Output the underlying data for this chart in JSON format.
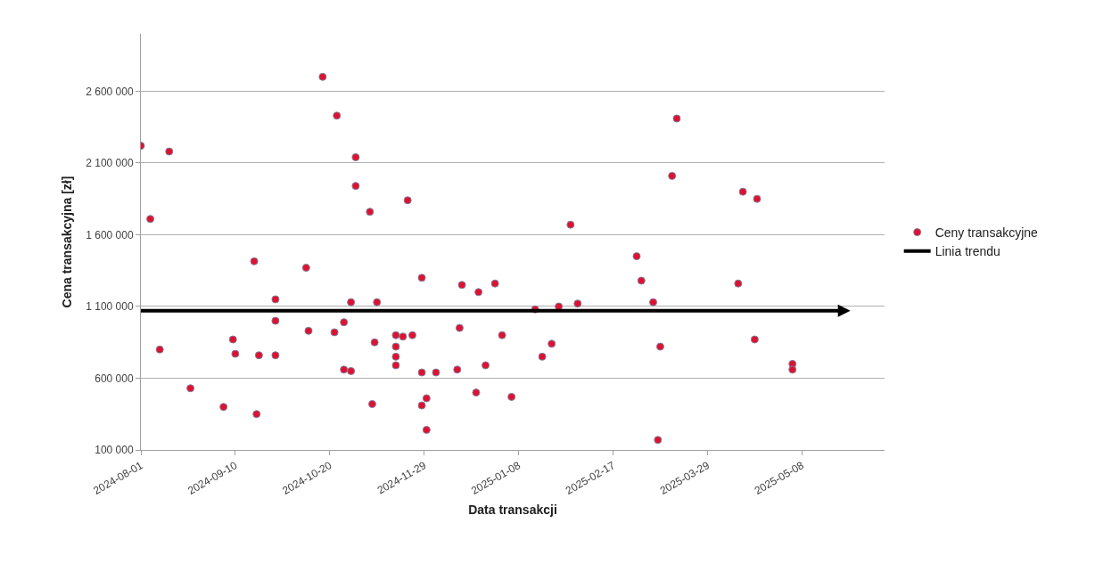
{
  "chart_data": {
    "type": "scatter",
    "xlabel": "Data transakcji",
    "ylabel": "Cena transakcyjna [zł]",
    "xlim": [
      "2024-08-01",
      "2025-06-12"
    ],
    "xticks": [
      "2024-08-01",
      "2024-09-10",
      "2024-10-20",
      "2024-11-29",
      "2025-01-08",
      "2025-02-17",
      "2025-03-29",
      "2025-05-08"
    ],
    "ylim": [
      100000,
      3000000
    ],
    "yticks": [
      {
        "value": 100000,
        "label": "100 000"
      },
      {
        "value": 600000,
        "label": "600 000"
      },
      {
        "value": 1100000,
        "label": "1 100 000"
      },
      {
        "value": 1600000,
        "label": "1 600 000"
      },
      {
        "value": 2100000,
        "label": "2 100 000"
      },
      {
        "value": 2600000,
        "label": "2 600 000"
      }
    ],
    "grid": "y",
    "legend": "right",
    "series": [
      {
        "name": "Ceny transakcyjne",
        "marker": "circle",
        "color": "#e0102e",
        "x": [
          "2024-08-01",
          "2024-08-05",
          "2024-08-09",
          "2024-08-13",
          "2024-08-22",
          "2024-09-05",
          "2024-09-09",
          "2024-09-10",
          "2024-09-18",
          "2024-09-19",
          "2024-09-20",
          "2024-09-27",
          "2024-09-27",
          "2024-09-27",
          "2024-10-10",
          "2024-10-11",
          "2024-10-17",
          "2024-10-22",
          "2024-10-23",
          "2024-10-26",
          "2024-10-26",
          "2024-10-29",
          "2024-10-29",
          "2024-10-31",
          "2024-10-31",
          "2024-11-06",
          "2024-11-07",
          "2024-11-08",
          "2024-11-09",
          "2024-11-17",
          "2024-11-17",
          "2024-11-17",
          "2024-11-17",
          "2024-11-20",
          "2024-11-22",
          "2024-11-24",
          "2024-11-28",
          "2024-11-28",
          "2024-11-28",
          "2024-11-30",
          "2024-11-30",
          "2024-12-04",
          "2024-12-13",
          "2024-12-14",
          "2024-12-15",
          "2024-12-21",
          "2024-12-22",
          "2024-12-25",
          "2024-12-29",
          "2025-01-01",
          "2025-01-05",
          "2025-01-15",
          "2025-01-18",
          "2025-01-22",
          "2025-01-25",
          "2025-01-30",
          "2025-02-02",
          "2025-02-27",
          "2025-03-01",
          "2025-03-06",
          "2025-03-08",
          "2025-03-09",
          "2025-03-14",
          "2025-03-16",
          "2025-04-11",
          "2025-04-13",
          "2025-04-18",
          "2025-04-19",
          "2025-05-04",
          "2025-05-04"
        ],
        "values": [
          2220000,
          1710000,
          800000,
          2180000,
          530000,
          400000,
          870000,
          770000,
          1415000,
          350000,
          760000,
          1150000,
          1000000,
          760000,
          1370000,
          930000,
          2700000,
          920000,
          2430000,
          990000,
          660000,
          1130000,
          650000,
          2140000,
          1940000,
          1760000,
          420000,
          850000,
          1130000,
          900000,
          820000,
          750000,
          690000,
          890000,
          1840000,
          900000,
          1300000,
          640000,
          410000,
          460000,
          240000,
          640000,
          660000,
          950000,
          1250000,
          500000,
          1200000,
          690000,
          1260000,
          900000,
          470000,
          1080000,
          750000,
          840000,
          1100000,
          1670000,
          1120000,
          1450000,
          1280000,
          1130000,
          170000,
          820000,
          2010000,
          2410000,
          1260000,
          1900000,
          870000,
          1850000,
          700000,
          660000
        ]
      },
      {
        "name": "Linia trendu",
        "type": "line",
        "color": "#000000",
        "x": [
          "2024-08-01",
          "2025-05-24"
        ],
        "values": [
          1070000,
          1070000
        ]
      }
    ]
  }
}
